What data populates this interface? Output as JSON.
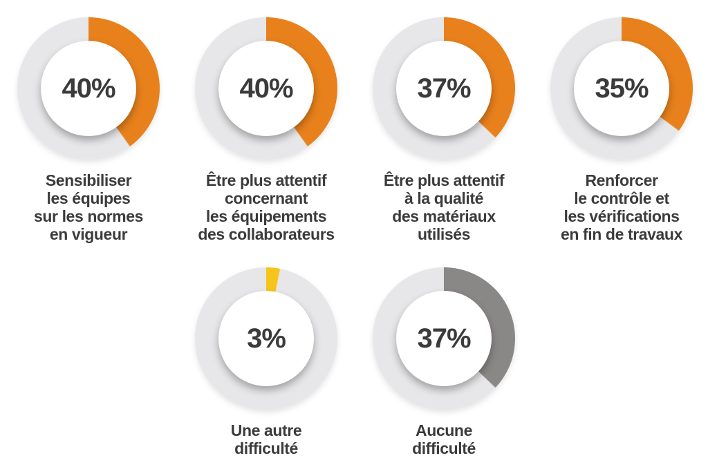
{
  "page": {
    "background_color": "#FFFFFF"
  },
  "chart_data": {
    "type": "pie",
    "subtype": "donut",
    "units": "%",
    "title": "",
    "track_color": "#E7E7E9",
    "value_text_color": "#3B3B3B",
    "label_text_color": "#3B3B3B",
    "start_angle_deg": 0,
    "direction": "clockwise",
    "charts": [
      {
        "value": 40,
        "display": "40%",
        "color": "#E8811C",
        "color_name": "orange",
        "label": "Sensibiliser\nles équipes\nsur les normes\nen vigueur"
      },
      {
        "value": 40,
        "display": "40%",
        "color": "#E8811C",
        "color_name": "orange",
        "label": "Être plus attentif\nconcernant\nles équipements\ndes collaborateurs"
      },
      {
        "value": 37,
        "display": "37%",
        "color": "#E8811C",
        "color_name": "orange",
        "label": "Être plus attentif\nà la qualité\ndes matériaux\nutilisés"
      },
      {
        "value": 35,
        "display": "35%",
        "color": "#E8811C",
        "color_name": "orange",
        "label": "Renforcer\nle contrôle et\nles vérifications\nen fin de travaux"
      },
      {
        "value": 3,
        "display": "3%",
        "color": "#F6C51D",
        "color_name": "yellow",
        "label": "Une autre\ndifficulté"
      },
      {
        "value": 37,
        "display": "37%",
        "color": "#8A8787",
        "color_name": "dark-gray",
        "label": "Aucune\ndifficulté"
      }
    ]
  }
}
